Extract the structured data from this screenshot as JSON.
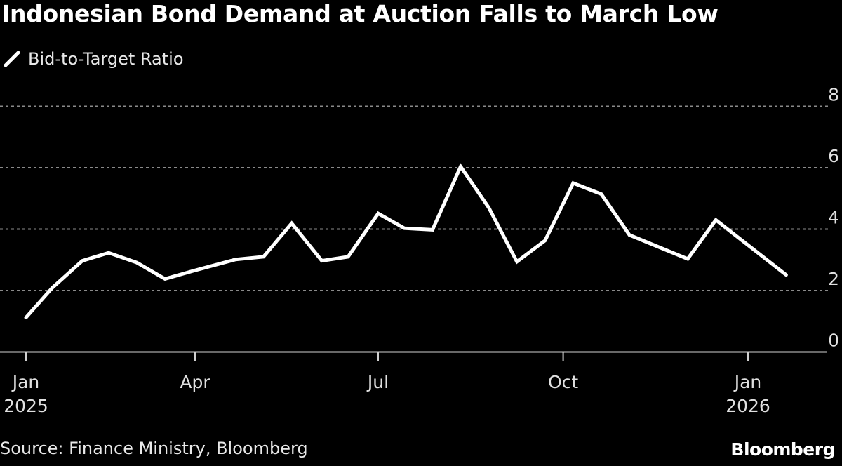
{
  "chart_data": {
    "type": "line",
    "title": "Indonesian Bond Demand at Auction Falls to March Low",
    "legend_position": "top-left",
    "grid": true,
    "series": [
      {
        "name": "Bid-to-Target Ratio",
        "color": "#ffffff",
        "x": [
          "2025-01-01",
          "2025-01-15",
          "2025-01-31",
          "2025-02-14",
          "2025-03-01",
          "2025-03-16",
          "2025-03-31",
          "2025-04-21",
          "2025-05-05",
          "2025-05-19",
          "2025-06-03",
          "2025-06-16",
          "2025-07-01",
          "2025-07-14",
          "2025-07-28",
          "2025-08-11",
          "2025-08-25",
          "2025-09-08",
          "2025-09-22",
          "2025-10-06",
          "2025-10-20",
          "2025-11-03",
          "2025-12-02",
          "2025-12-16",
          "2026-01-20"
        ],
        "values": [
          1.12,
          2.09,
          2.97,
          3.23,
          2.91,
          2.38,
          2.64,
          3.01,
          3.1,
          4.19,
          2.97,
          3.1,
          4.51,
          4.03,
          3.98,
          6.04,
          4.7,
          2.94,
          3.63,
          5.5,
          5.14,
          3.81,
          3.03,
          4.3,
          2.51
        ]
      }
    ],
    "ylim": [
      0,
      8
    ],
    "yticks": [
      "0",
      "2",
      "4",
      "6",
      "8"
    ],
    "xticks": [
      {
        "date": "2025-01-01",
        "line1": "Jan",
        "line2": "2025"
      },
      {
        "date": "2025-04-01",
        "line1": "Apr",
        "line2": ""
      },
      {
        "date": "2025-07-01",
        "line1": "Jul",
        "line2": ""
      },
      {
        "date": "2025-10-01",
        "line1": "Oct",
        "line2": ""
      },
      {
        "date": "2026-01-01",
        "line1": "Jan",
        "line2": "2026"
      }
    ],
    "xlabel": "",
    "ylabel": ""
  },
  "legend": {
    "label": "Bid-to-Target Ratio"
  },
  "footer": {
    "source": "Source: Finance Ministry, Bloomberg",
    "logo": "Bloomberg"
  }
}
